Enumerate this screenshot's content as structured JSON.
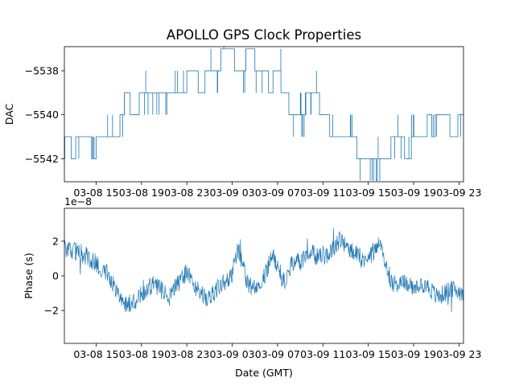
{
  "title": "APOLLO GPS Clock Properties",
  "colors": {
    "series": "#1f77b4",
    "axis": "#000000",
    "background": "#ffffff"
  },
  "chart_data": [
    {
      "type": "line",
      "ylabel": "DAC",
      "xlabel": "",
      "x_tick_labels": [
        "03-08 15",
        "03-08 19",
        "03-08 23",
        "03-09 03",
        "03-09 07",
        "03-09 11",
        "03-09 15",
        "03-09 19",
        "03-09 23"
      ],
      "x_ticks_hours": [
        15,
        19,
        23,
        27,
        31,
        35,
        39,
        43,
        47
      ],
      "xlim_hours": [
        12.2,
        47.4
      ],
      "y_tick_labels": [
        "−5542",
        "−5540",
        "−5538"
      ],
      "y_ticks": [
        -5542,
        -5540,
        -5538
      ],
      "ylim": [
        -5543.05,
        -5536.9
      ],
      "series": [
        {
          "name": "DAC",
          "steps": [
            [
              12.2,
              -5541
            ],
            [
              12.8,
              -5542
            ],
            [
              13.2,
              -5541
            ],
            [
              14.6,
              -5542
            ],
            [
              15.0,
              -5541
            ],
            [
              17.1,
              -5540
            ],
            [
              17.5,
              -5539
            ],
            [
              18.0,
              -5540
            ],
            [
              18.8,
              -5539
            ],
            [
              23.0,
              -5538
            ],
            [
              24.0,
              -5539
            ],
            [
              24.6,
              -5538
            ],
            [
              26.0,
              -5537
            ],
            [
              27.2,
              -5538
            ],
            [
              28.2,
              -5537
            ],
            [
              29.0,
              -5538
            ],
            [
              30.2,
              -5539
            ],
            [
              30.6,
              -5538
            ],
            [
              31.3,
              -5539
            ],
            [
              32.0,
              -5540
            ],
            [
              33.5,
              -5539
            ],
            [
              34.7,
              -5540
            ],
            [
              35.6,
              -5541
            ],
            [
              38.0,
              -5542
            ],
            [
              39.7,
              -5543
            ],
            [
              39.8,
              -5542
            ],
            [
              41.0,
              -5541
            ],
            [
              42.2,
              -5542
            ],
            [
              42.8,
              -5541
            ],
            [
              44.2,
              -5540
            ],
            [
              44.6,
              -5541
            ],
            [
              44.9,
              -5540
            ],
            [
              46.2,
              -5541
            ],
            [
              46.9,
              -5540
            ],
            [
              47.4,
              -5540
            ]
          ]
        }
      ]
    },
    {
      "type": "line",
      "ylabel": "Phase (s)",
      "xlabel": "Date (GMT)",
      "scale_label": "1e−8",
      "x_tick_labels": [
        "03-08 15",
        "03-08 19",
        "03-08 23",
        "03-09 03",
        "03-09 07",
        "03-09 11",
        "03-09 15",
        "03-09 19",
        "03-09 23"
      ],
      "x_ticks_hours": [
        15,
        19,
        23,
        27,
        31,
        35,
        39,
        43,
        47
      ],
      "xlim_hours": [
        12.2,
        47.4
      ],
      "y_tick_labels": [
        "−2",
        "0",
        "2"
      ],
      "y_ticks": [
        -2,
        0,
        2
      ],
      "ylim": [
        -3.9,
        3.9
      ],
      "series": [
        {
          "name": "Phase",
          "x": [
            12.2,
            13.0,
            14.0,
            15.0,
            16.0,
            17.0,
            17.6,
            18.0,
            18.5,
            19.0,
            19.5,
            20.0,
            20.5,
            21.0,
            21.5,
            22.0,
            23.0,
            24.0,
            24.8,
            25.5,
            26.0,
            27.0,
            27.5,
            28.0,
            28.5,
            29.0,
            29.5,
            30.0,
            30.5,
            31.0,
            31.5,
            32.0,
            32.5,
            33.0,
            33.5,
            34.0,
            34.5,
            35.0,
            35.5,
            36.0,
            36.5,
            37.0,
            37.5,
            38.0,
            38.5,
            39.0,
            39.5,
            40.0,
            40.5,
            41.0,
            41.5,
            42.0,
            42.5,
            43.0,
            43.5,
            44.0,
            44.5,
            45.0,
            45.5,
            46.0,
            46.5,
            47.0,
            47.4
          ],
          "y": [
            1.6,
            1.5,
            1.2,
            0.7,
            0.2,
            -1.0,
            -1.6,
            -1.6,
            -1.4,
            -1.1,
            -0.8,
            -0.5,
            -0.7,
            -1.0,
            -1.2,
            -0.6,
            0.2,
            -0.8,
            -1.3,
            -0.9,
            -0.5,
            0.1,
            1.6,
            0.4,
            -0.7,
            -0.5,
            -0.3,
            0.2,
            1.3,
            0.6,
            -0.4,
            0.3,
            0.9,
            0.8,
            1.2,
            1.3,
            1.1,
            1.2,
            1.3,
            1.6,
            2.1,
            1.8,
            1.4,
            1.2,
            1.0,
            1.1,
            1.4,
            1.8,
            0.8,
            -0.3,
            -0.5,
            -0.4,
            -0.4,
            -0.9,
            -0.6,
            -0.4,
            -0.8,
            -1.2,
            -1.1,
            -0.9,
            -0.8,
            -0.9,
            -0.9
          ]
        }
      ]
    }
  ]
}
